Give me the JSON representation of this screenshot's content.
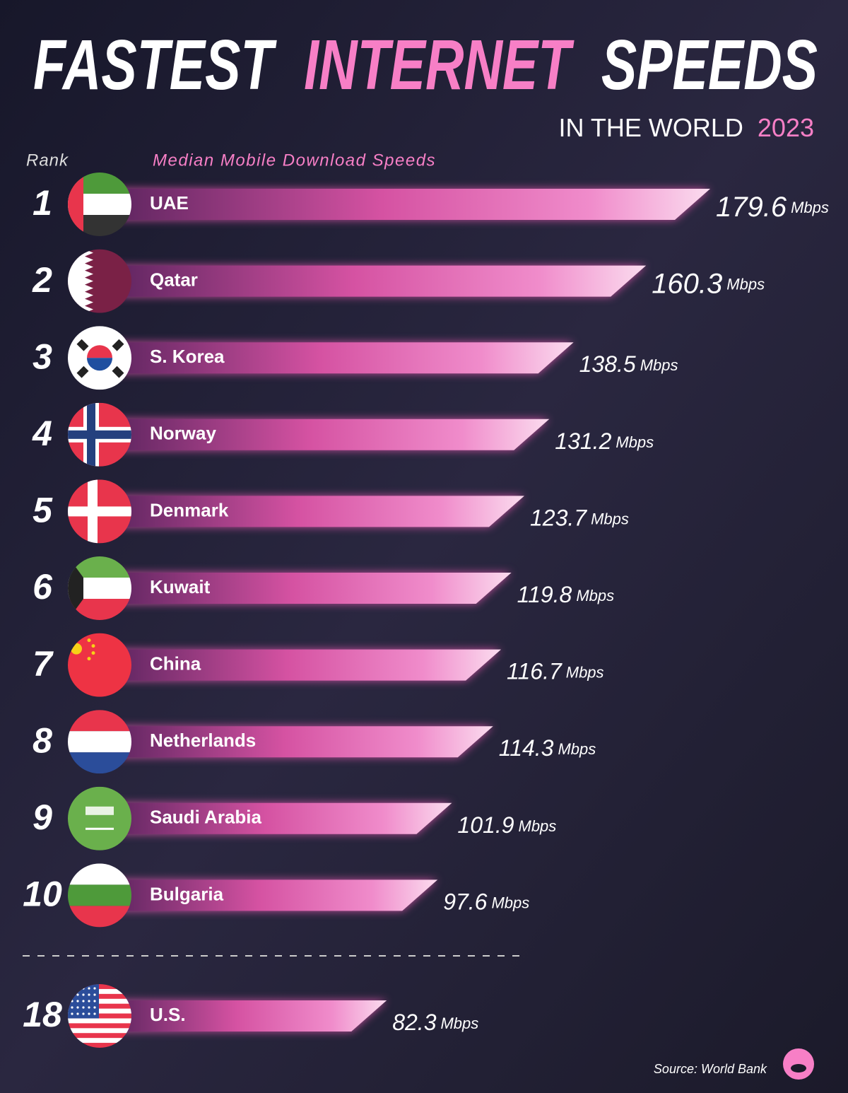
{
  "chart_data": {
    "type": "bar",
    "title": [
      "FASTEST",
      "INTERNET",
      "SPEEDS"
    ],
    "subtitle": [
      "IN THE WORLD",
      "2023"
    ],
    "rank_label": "Rank",
    "value_axis_label": "Median Mobile Download Speeds",
    "ranks": [
      1,
      2,
      3,
      4,
      5,
      6,
      7,
      8,
      9,
      10,
      18
    ],
    "categories": [
      "UAE",
      "Qatar",
      "S. Korea",
      "Norway",
      "Denmark",
      "Kuwait",
      "China",
      "Netherlands",
      "Saudi Arabia",
      "Bulgaria",
      "U.S."
    ],
    "values": [
      179.6,
      160.3,
      138.5,
      131.2,
      123.7,
      119.8,
      116.7,
      114.3,
      101.9,
      97.6,
      82.3
    ],
    "unit": "Mbps",
    "color": "#ee6ab8",
    "source": "Source: World Bank"
  }
}
